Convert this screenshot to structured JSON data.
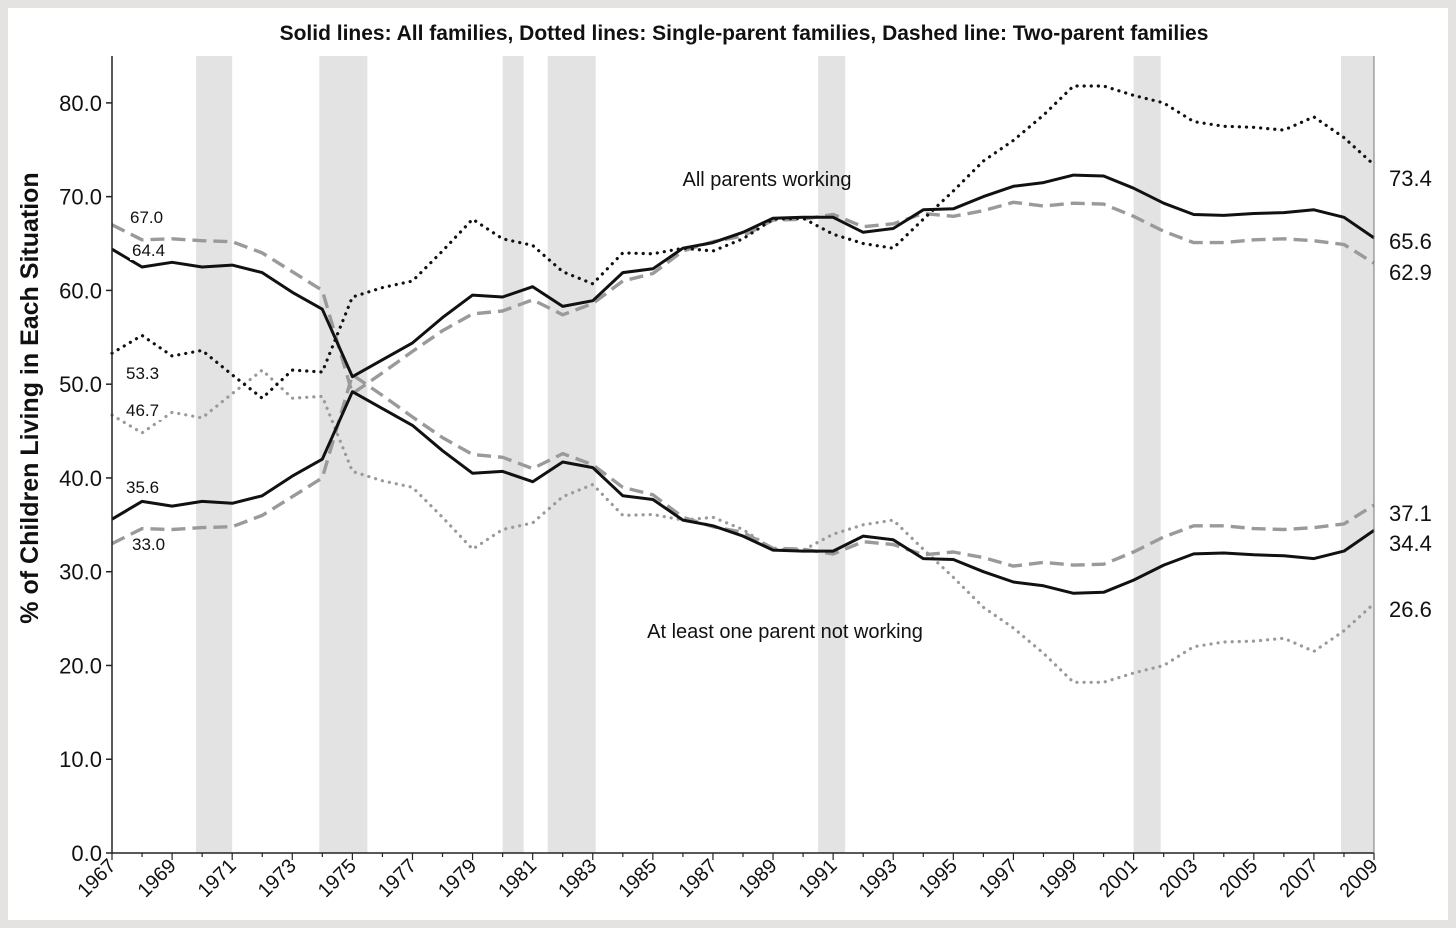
{
  "chart_data": {
    "type": "line",
    "title": "Solid lines: All families, Dotted lines: Single-parent families, Dashed line: Two-parent families",
    "ylabel": "% of Children Living in Each Situation",
    "xlabel": "",
    "ylim": [
      0,
      85
    ],
    "xlim": [
      1967,
      2009
    ],
    "grid": false,
    "y_ticks": [
      "0.0",
      "10.0",
      "20.0",
      "30.0",
      "40.0",
      "50.0",
      "60.0",
      "70.0",
      "80.0"
    ],
    "x_ticks": [
      "1967",
      "1969",
      "1971",
      "1973",
      "1975",
      "1977",
      "1979",
      "1981",
      "1983",
      "1985",
      "1987",
      "1989",
      "1991",
      "1993",
      "1995",
      "1997",
      "1999",
      "2001",
      "2003",
      "2005",
      "2007",
      "2009"
    ],
    "recessions": [
      [
        1969.8,
        1971
      ],
      [
        1973.9,
        1975.5
      ],
      [
        1980,
        1980.7
      ],
      [
        1981.5,
        1983.1
      ],
      [
        1990.5,
        1991.4
      ],
      [
        2001,
        2001.9
      ],
      [
        2007.9,
        2009.5
      ]
    ],
    "annotations": [
      "All parents working",
      "At least one parent not working"
    ],
    "x": [
      1967,
      1968,
      1969,
      1970,
      1971,
      1972,
      1973,
      1974,
      1975,
      1976,
      1977,
      1978,
      1979,
      1980,
      1981,
      1982,
      1983,
      1984,
      1985,
      1986,
      1987,
      1988,
      1989,
      1990,
      1991,
      1992,
      1993,
      1994,
      1995,
      1996,
      1997,
      1998,
      1999,
      2000,
      2001,
      2002,
      2003,
      2004,
      2005,
      2006,
      2007,
      2008,
      2009
    ],
    "series": [
      {
        "group": "All parents working",
        "family": "All families",
        "style": "solid",
        "color": "#111111",
        "values": [
          64.4,
          62.5,
          63.0,
          62.5,
          62.7,
          61.9,
          59.8,
          58.0,
          50.8,
          52.6,
          54.4,
          57.1,
          59.5,
          59.3,
          60.4,
          58.3,
          58.9,
          61.9,
          62.3,
          64.5,
          65.1,
          66.2,
          67.7,
          67.8,
          67.8,
          66.2,
          66.6,
          68.6,
          68.7,
          70.0,
          71.1,
          71.5,
          72.3,
          72.2,
          70.9,
          69.3,
          68.1,
          68.0,
          68.2,
          68.3,
          68.6,
          67.8,
          65.6
        ],
        "end_label": "65.6",
        "start_label": "64.4"
      },
      {
        "group": "All parents working",
        "family": "Two-parent families",
        "style": "dashed",
        "color": "#9a9a9a",
        "values": [
          67.0,
          65.4,
          65.5,
          65.3,
          65.2,
          64.0,
          62.0,
          60.0,
          49.0,
          51.2,
          53.5,
          55.7,
          57.5,
          57.8,
          59.0,
          57.4,
          58.6,
          61.0,
          61.8,
          64.2,
          65.2,
          65.8,
          67.5,
          67.6,
          68.1,
          66.8,
          67.1,
          68.2,
          67.9,
          68.5,
          69.4,
          69.0,
          69.3,
          69.2,
          67.9,
          66.3,
          65.1,
          65.1,
          65.4,
          65.5,
          65.3,
          64.9,
          62.9
        ],
        "end_label": "62.9",
        "start_label": "67.0"
      },
      {
        "group": "All parents working",
        "family": "Single-parent families",
        "style": "dotted",
        "color": "#111111",
        "values": [
          53.3,
          55.2,
          53.0,
          53.6,
          51.0,
          48.5,
          51.5,
          51.3,
          59.3,
          60.3,
          61.0,
          64.2,
          67.6,
          65.5,
          64.8,
          62.0,
          60.7,
          64.0,
          63.9,
          64.5,
          64.2,
          65.5,
          67.6,
          67.7,
          66.0,
          65.0,
          64.5,
          67.6,
          70.6,
          73.8,
          76.0,
          78.7,
          81.8,
          81.8,
          80.8,
          80.0,
          78.0,
          77.5,
          77.4,
          77.1,
          78.5,
          76.3,
          73.4
        ],
        "end_label": "73.4",
        "start_label": "53.3"
      },
      {
        "group": "At least one parent not working",
        "family": "All families",
        "style": "solid",
        "color": "#111111",
        "values": [
          35.6,
          37.5,
          37.0,
          37.5,
          37.3,
          38.1,
          40.2,
          42.0,
          49.2,
          47.4,
          45.6,
          42.9,
          40.5,
          40.7,
          39.6,
          41.7,
          41.1,
          38.1,
          37.7,
          35.5,
          34.9,
          33.8,
          32.3,
          32.2,
          32.2,
          33.8,
          33.4,
          31.4,
          31.3,
          30.0,
          28.9,
          28.5,
          27.7,
          27.8,
          29.1,
          30.7,
          31.9,
          32.0,
          31.8,
          31.7,
          31.4,
          32.2,
          34.4
        ],
        "end_label": "34.4",
        "start_label": "35.6"
      },
      {
        "group": "At least one parent not working",
        "family": "Two-parent families",
        "style": "dashed",
        "color": "#9a9a9a",
        "values": [
          33.0,
          34.6,
          34.5,
          34.7,
          34.8,
          36.0,
          38.0,
          40.0,
          51.0,
          48.8,
          46.5,
          44.3,
          42.5,
          42.2,
          41.0,
          42.6,
          41.4,
          39.0,
          38.2,
          35.8,
          34.8,
          34.2,
          32.5,
          32.4,
          31.9,
          33.2,
          32.9,
          31.8,
          32.1,
          31.5,
          30.6,
          31.0,
          30.7,
          30.8,
          32.1,
          33.7,
          34.9,
          34.9,
          34.6,
          34.5,
          34.7,
          35.1,
          37.1
        ],
        "end_label": "37.1",
        "start_label": "33.0"
      },
      {
        "group": "At least one parent not working",
        "family": "Single-parent families",
        "style": "dotted",
        "color": "#9a9a9a",
        "values": [
          46.7,
          44.8,
          47.0,
          46.4,
          49.0,
          51.5,
          48.5,
          48.7,
          40.7,
          39.7,
          39.0,
          35.8,
          32.4,
          34.5,
          35.2,
          38.0,
          39.3,
          36.0,
          36.1,
          35.5,
          35.8,
          34.5,
          32.4,
          32.3,
          34.0,
          35.0,
          35.5,
          32.4,
          29.4,
          26.2,
          24.0,
          21.3,
          18.2,
          18.2,
          19.2,
          20.0,
          22.0,
          22.5,
          22.6,
          22.9,
          21.5,
          23.7,
          26.6
        ],
        "end_label": "26.6",
        "start_label": "46.7"
      }
    ]
  }
}
